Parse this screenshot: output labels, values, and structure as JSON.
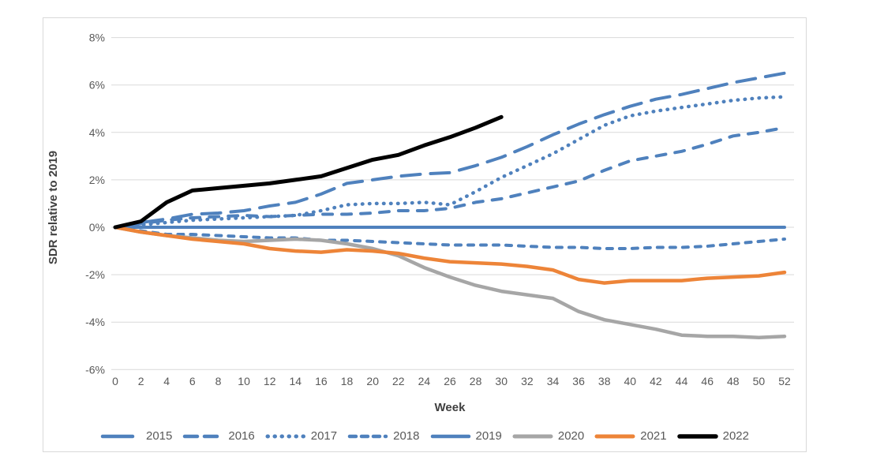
{
  "figure": {
    "background": "#ffffff",
    "border_color": "#d9d9d9"
  },
  "chart_data": {
    "type": "line",
    "title": "",
    "xlabel": "Week",
    "ylabel": "SDR relative to 2019",
    "xlim": [
      0,
      52
    ],
    "ylim": [
      -6,
      8
    ],
    "grid": true,
    "grid_color": "#d9d9d9",
    "tick_color": "#595959",
    "title_color": "#404040",
    "legend_position": "bottom",
    "x_ticks": [
      0,
      2,
      4,
      6,
      8,
      10,
      12,
      14,
      16,
      18,
      20,
      22,
      24,
      26,
      28,
      30,
      32,
      34,
      36,
      38,
      40,
      42,
      44,
      46,
      48,
      50,
      52
    ],
    "y_tick_labels": [
      "8%",
      "6%",
      "4%",
      "2%",
      "0%",
      "-2%",
      "-4%",
      "-6%"
    ],
    "y_tick_values": [
      8,
      6,
      4,
      2,
      0,
      -2,
      -4,
      -6
    ],
    "series": [
      {
        "name": "2015",
        "color": "#4F81BD",
        "line_style": "long-dash",
        "width": 4,
        "x": [
          0,
          2,
          4,
          6,
          8,
          10,
          12,
          14,
          16,
          18,
          20,
          22,
          24,
          26,
          28,
          30,
          32,
          34,
          36,
          38,
          40,
          42,
          44,
          46,
          48,
          50,
          52
        ],
        "values": [
          0,
          0.2,
          0.35,
          0.55,
          0.6,
          0.7,
          0.9,
          1.05,
          1.4,
          1.85,
          2.0,
          2.15,
          2.25,
          2.3,
          2.6,
          2.95,
          3.4,
          3.9,
          4.35,
          4.75,
          5.1,
          5.4,
          5.6,
          5.85,
          6.1,
          6.3,
          6.5
        ]
      },
      {
        "name": "2016",
        "color": "#4F81BD",
        "line_style": "dash",
        "width": 4,
        "x": [
          0,
          2,
          4,
          6,
          8,
          10,
          12,
          14,
          16,
          18,
          20,
          22,
          24,
          26,
          28,
          30,
          32,
          34,
          36,
          38,
          40,
          42,
          44,
          46,
          48,
          50,
          52
        ],
        "values": [
          0,
          0.15,
          0.3,
          0.4,
          0.45,
          0.5,
          0.45,
          0.5,
          0.55,
          0.55,
          0.6,
          0.7,
          0.7,
          0.8,
          1.05,
          1.2,
          1.45,
          1.7,
          1.95,
          2.4,
          2.8,
          3.0,
          3.2,
          3.5,
          3.85,
          4.0,
          4.2
        ]
      },
      {
        "name": "2017",
        "color": "#4F81BD",
        "line_style": "dot",
        "width": 4.5,
        "x": [
          0,
          2,
          4,
          6,
          8,
          10,
          12,
          14,
          16,
          18,
          20,
          22,
          24,
          26,
          28,
          30,
          32,
          34,
          36,
          38,
          40,
          42,
          44,
          46,
          48,
          50,
          52
        ],
        "values": [
          0,
          0.1,
          0.2,
          0.3,
          0.35,
          0.4,
          0.45,
          0.5,
          0.7,
          0.95,
          1.0,
          1.0,
          1.05,
          0.95,
          1.5,
          2.1,
          2.6,
          3.1,
          3.7,
          4.3,
          4.7,
          4.9,
          5.05,
          5.2,
          5.35,
          5.45,
          5.5
        ]
      },
      {
        "name": "2018",
        "color": "#4F81BD",
        "line_style": "short-dash",
        "width": 4,
        "x": [
          0,
          2,
          4,
          6,
          8,
          10,
          12,
          14,
          16,
          18,
          20,
          22,
          24,
          26,
          28,
          30,
          32,
          34,
          36,
          38,
          40,
          42,
          44,
          46,
          48,
          50,
          52
        ],
        "values": [
          0,
          -0.15,
          -0.3,
          -0.3,
          -0.35,
          -0.4,
          -0.45,
          -0.45,
          -0.55,
          -0.55,
          -0.6,
          -0.65,
          -0.7,
          -0.75,
          -0.75,
          -0.75,
          -0.8,
          -0.85,
          -0.85,
          -0.9,
          -0.9,
          -0.85,
          -0.85,
          -0.8,
          -0.7,
          -0.6,
          -0.5
        ]
      },
      {
        "name": "2019",
        "color": "#4F81BD",
        "line_style": "solid",
        "width": 4,
        "x": [
          0,
          2,
          4,
          6,
          8,
          10,
          12,
          14,
          16,
          18,
          20,
          22,
          24,
          26,
          28,
          30,
          32,
          34,
          36,
          38,
          40,
          42,
          44,
          46,
          48,
          50,
          52
        ],
        "values": [
          0,
          0,
          0,
          0,
          0,
          0,
          0,
          0,
          0,
          0,
          0,
          0,
          0,
          0,
          0,
          0,
          0,
          0,
          0,
          0,
          0,
          0,
          0,
          0,
          0,
          0,
          0
        ]
      },
      {
        "name": "2020",
        "color": "#A6A6A6",
        "line_style": "solid",
        "width": 4.5,
        "x": [
          0,
          2,
          4,
          6,
          8,
          10,
          12,
          14,
          16,
          18,
          20,
          22,
          24,
          26,
          28,
          30,
          32,
          34,
          36,
          38,
          40,
          42,
          44,
          46,
          48,
          50,
          52
        ],
        "values": [
          0,
          -0.2,
          -0.35,
          -0.45,
          -0.55,
          -0.6,
          -0.55,
          -0.5,
          -0.55,
          -0.7,
          -0.9,
          -1.2,
          -1.7,
          -2.1,
          -2.45,
          -2.7,
          -2.85,
          -3.0,
          -3.55,
          -3.9,
          -4.1,
          -4.3,
          -4.55,
          -4.6,
          -4.6,
          -4.65,
          -4.6
        ]
      },
      {
        "name": "2021",
        "color": "#ED8438",
        "line_style": "solid",
        "width": 4.5,
        "x": [
          0,
          2,
          4,
          6,
          8,
          10,
          12,
          14,
          16,
          18,
          20,
          22,
          24,
          26,
          28,
          30,
          32,
          34,
          36,
          38,
          40,
          42,
          44,
          46,
          48,
          50,
          52
        ],
        "values": [
          0,
          -0.2,
          -0.35,
          -0.5,
          -0.6,
          -0.7,
          -0.9,
          -1.0,
          -1.05,
          -0.95,
          -1.0,
          -1.1,
          -1.3,
          -1.45,
          -1.5,
          -1.55,
          -1.65,
          -1.8,
          -2.2,
          -2.35,
          -2.25,
          -2.25,
          -2.25,
          -2.15,
          -2.1,
          -2.05,
          -1.9
        ]
      },
      {
        "name": "2022",
        "color": "#000000",
        "line_style": "solid",
        "width": 5,
        "x": [
          0,
          2,
          4,
          6,
          8,
          10,
          12,
          14,
          16,
          18,
          20,
          22,
          24,
          26,
          28,
          30
        ],
        "values": [
          0,
          0.25,
          1.05,
          1.55,
          1.65,
          1.75,
          1.85,
          2.0,
          2.15,
          2.5,
          2.85,
          3.05,
          3.45,
          3.8,
          4.2,
          4.65
        ]
      }
    ]
  }
}
